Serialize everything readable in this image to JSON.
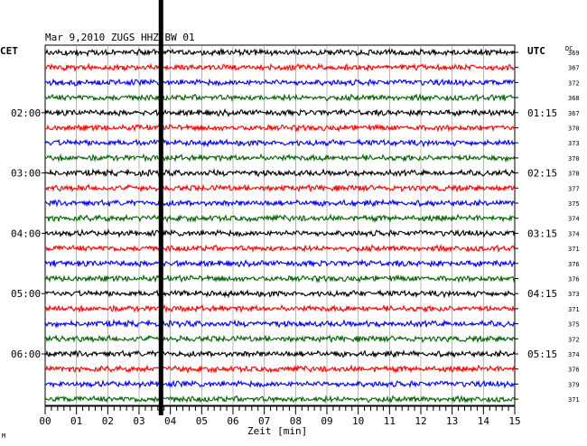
{
  "header": {
    "title": "Mar 9,2010   ZUGS  HHZ BW 01",
    "left_zone": "CET",
    "right_zone": "UTC",
    "dc_label": "DC",
    "x_axis_label": "Zeit [min]",
    "corner_mark": "M"
  },
  "chart_data": {
    "type": "line",
    "title": "Mar 9,2010   ZUGS  HHZ BW 01",
    "xlabel": "Zeit [min]",
    "ylabel": "",
    "x_range": [
      0,
      15
    ],
    "x_ticks": [
      "00",
      "01",
      "02",
      "03",
      "04",
      "05",
      "06",
      "07",
      "08",
      "09",
      "10",
      "11",
      "12",
      "13",
      "14",
      "15"
    ],
    "left_hour_labels": [
      {
        "row": 4,
        "label": "02:00"
      },
      {
        "row": 8,
        "label": "03:00"
      },
      {
        "row": 12,
        "label": "04:00"
      },
      {
        "row": 16,
        "label": "05:00"
      },
      {
        "row": 20,
        "label": "06:00"
      }
    ],
    "right_hour_labels": [
      {
        "row": 4,
        "label": "01:15"
      },
      {
        "row": 8,
        "label": "02:15"
      },
      {
        "row": 12,
        "label": "03:15"
      },
      {
        "row": 16,
        "label": "04:15"
      },
      {
        "row": 20,
        "label": "05:15"
      }
    ],
    "dc_offsets": [
      "369",
      "367",
      "372",
      "368",
      "367",
      "370",
      "373",
      "370",
      "378",
      "377",
      "375",
      "374",
      "374",
      "371",
      "376",
      "376",
      "373",
      "371",
      "375",
      "372",
      "374",
      "376",
      "379",
      "371"
    ],
    "trace_colors": [
      "#000000",
      "#ff0000",
      "#0000ff",
      "#006400"
    ],
    "event_marker_minute": 3.7,
    "grid": true
  }
}
